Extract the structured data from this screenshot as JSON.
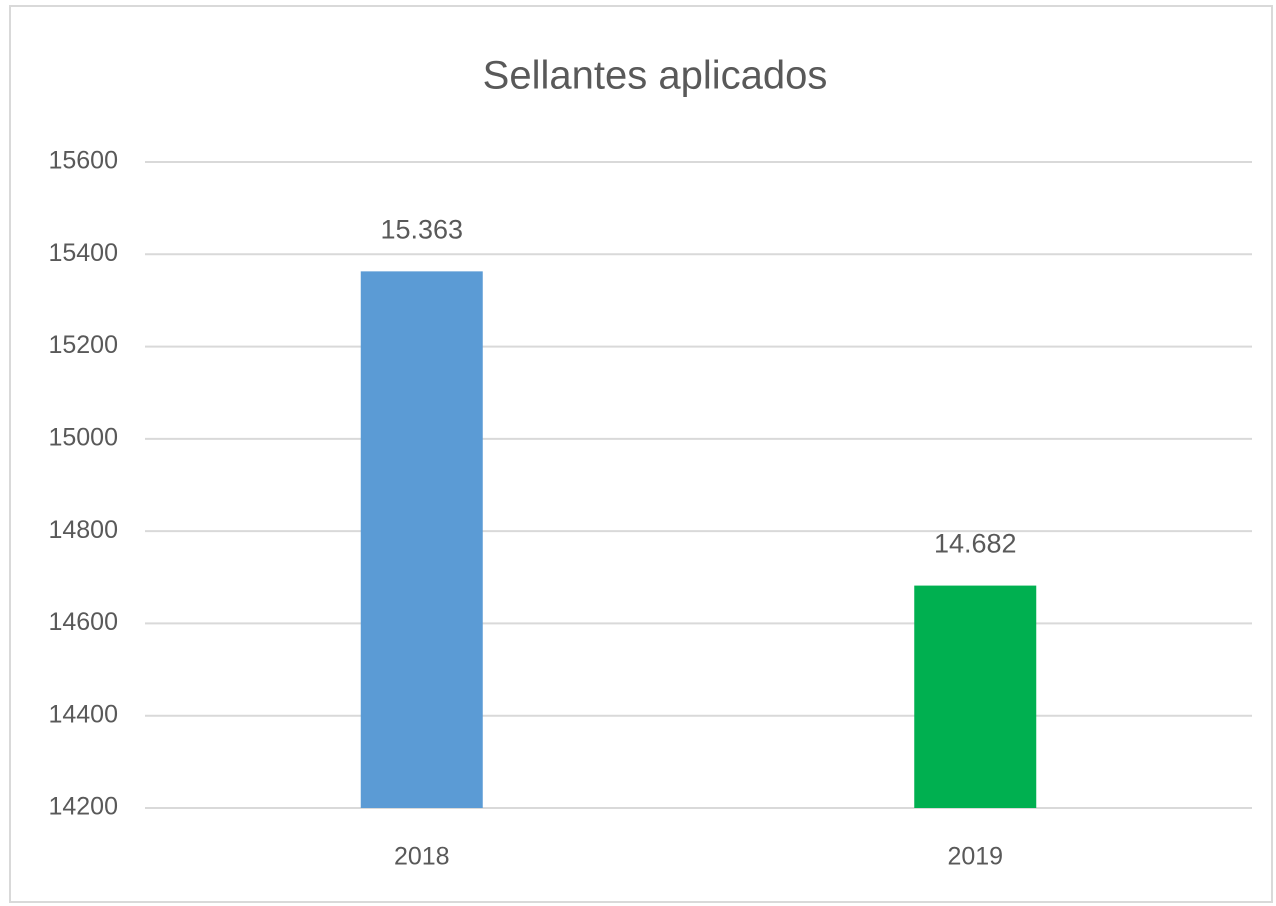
{
  "chart_data": {
    "type": "bar",
    "title": "Sellantes aplicados",
    "categories": [
      "2018",
      "2019"
    ],
    "values": [
      15363,
      14682
    ],
    "value_labels": [
      "15.363",
      "14.682"
    ],
    "colors": [
      "#5b9bd5",
      "#00b050"
    ],
    "ylim": [
      14200,
      15600
    ],
    "yticks": [
      14200,
      14400,
      14600,
      14800,
      15000,
      15200,
      15400,
      15600
    ],
    "grid": true
  }
}
